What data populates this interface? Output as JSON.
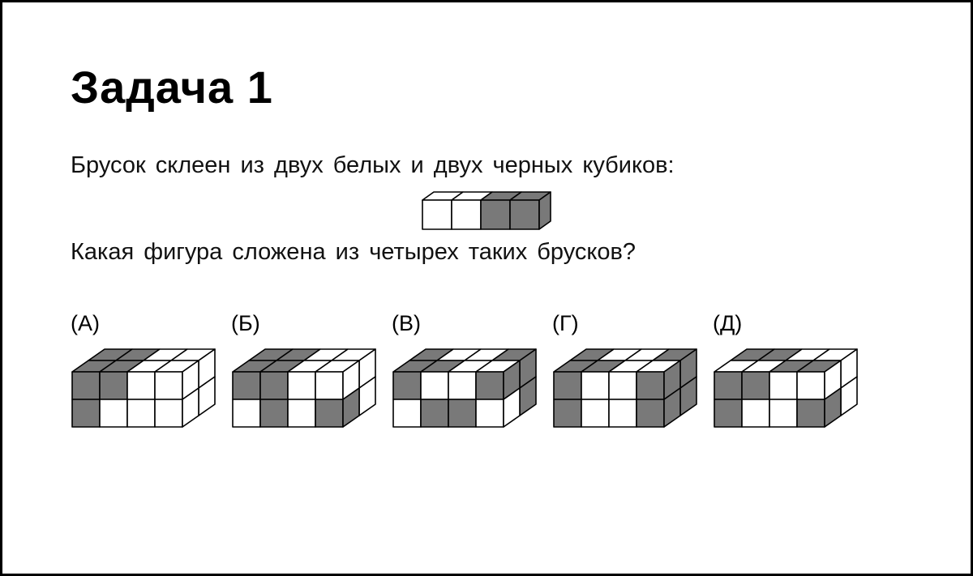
{
  "colors": {
    "white": "#ffffff",
    "dark": "#797979",
    "stroke": "#000000"
  },
  "title": "Задача 1",
  "text_line1": "Брусок склеен из двух белых и двух черных кубиков:",
  "text_line2": "Какая фигура сложена из четырех таких брусков?",
  "bar": {
    "type": "cube-row-3d",
    "cube_count": 4,
    "cube_size": 36,
    "iso_dx": 14,
    "iso_dy": 10,
    "colors": [
      "white",
      "white",
      "dark",
      "dark"
    ]
  },
  "options": [
    {
      "label": "(А)",
      "type": "cube-block-3d",
      "cols": 4,
      "rows": 2,
      "cube_size": 34,
      "iso_dx": 20,
      "iso_dy": 14,
      "front": [
        [
          "dark",
          "dark",
          "white",
          "white"
        ],
        [
          "dark",
          "white",
          "white",
          "white"
        ]
      ],
      "top": [
        [
          "dark",
          "dark",
          "white",
          "white"
        ],
        [
          "dark",
          "dark",
          "white",
          "white"
        ]
      ]
    },
    {
      "label": "(Б)",
      "type": "cube-block-3d",
      "cols": 4,
      "rows": 2,
      "cube_size": 34,
      "iso_dx": 20,
      "iso_dy": 14,
      "front": [
        [
          "dark",
          "dark",
          "white",
          "white"
        ],
        [
          "white",
          "dark",
          "white",
          "dark"
        ]
      ],
      "top": [
        [
          "dark",
          "dark",
          "white",
          "white"
        ],
        [
          "dark",
          "dark",
          "white",
          "white"
        ]
      ]
    },
    {
      "label": "(В)",
      "type": "cube-block-3d",
      "cols": 4,
      "rows": 2,
      "cube_size": 34,
      "iso_dx": 20,
      "iso_dy": 14,
      "front": [
        [
          "dark",
          "white",
          "white",
          "dark"
        ],
        [
          "white",
          "dark",
          "dark",
          "white"
        ]
      ],
      "top": [
        [
          "dark",
          "dark",
          "white",
          "white"
        ],
        [
          "dark",
          "white",
          "white",
          "dark"
        ]
      ]
    },
    {
      "label": "(Г)",
      "type": "cube-block-3d",
      "cols": 4,
      "rows": 2,
      "cube_size": 34,
      "iso_dx": 20,
      "iso_dy": 14,
      "front": [
        [
          "dark",
          "white",
          "white",
          "dark"
        ],
        [
          "dark",
          "white",
          "white",
          "dark"
        ]
      ],
      "top": [
        [
          "dark",
          "dark",
          "white",
          "white"
        ],
        [
          "dark",
          "white",
          "white",
          "dark"
        ]
      ]
    },
    {
      "label": "(Д)",
      "type": "cube-block-3d",
      "cols": 4,
      "rows": 2,
      "cube_size": 34,
      "iso_dx": 20,
      "iso_dy": 14,
      "front": [
        [
          "dark",
          "dark",
          "white",
          "white"
        ],
        [
          "dark",
          "white",
          "white",
          "dark"
        ]
      ],
      "top": [
        [
          "white",
          "white",
          "dark",
          "dark"
        ],
        [
          "dark",
          "dark",
          "white",
          "white"
        ]
      ]
    }
  ]
}
